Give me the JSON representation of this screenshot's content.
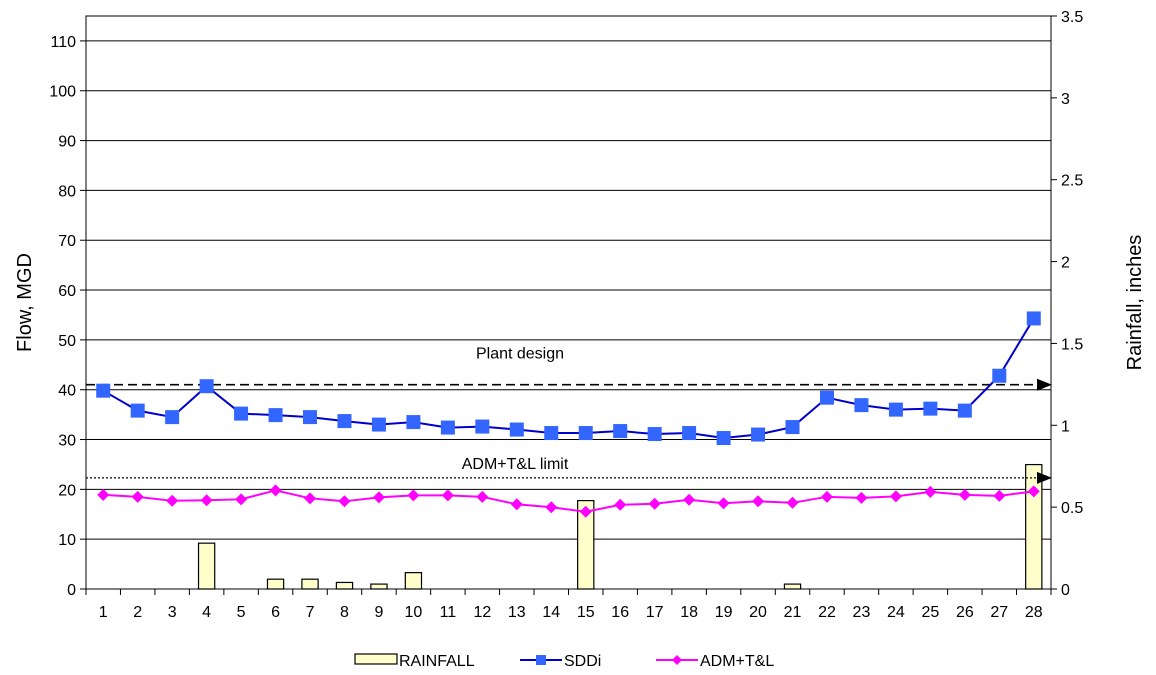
{
  "chart_data": {
    "type": "bar",
    "categories": [
      "1",
      "2",
      "3",
      "4",
      "5",
      "6",
      "7",
      "8",
      "9",
      "10",
      "11",
      "12",
      "13",
      "14",
      "15",
      "16",
      "17",
      "18",
      "19",
      "20",
      "21",
      "22",
      "23",
      "24",
      "25",
      "26",
      "27",
      "28"
    ],
    "ylabel": "Flow, MGD",
    "y2label": "Rainfall, inches",
    "ylim": [
      0,
      115
    ],
    "y2lim": [
      0,
      3.5
    ],
    "yticks": [
      0,
      10,
      20,
      30,
      40,
      50,
      60,
      70,
      80,
      90,
      100,
      110
    ],
    "y2ticks": [
      "0",
      "0.5",
      "1",
      "1.5",
      "2",
      "2.5",
      "3",
      "3.5"
    ],
    "y2tick_values": [
      0,
      0.5,
      1,
      1.5,
      2,
      2.5,
      3,
      3.5
    ],
    "grid": true,
    "legend_position": "bottom",
    "series": [
      {
        "name": "RAINFALL",
        "type": "bar",
        "axis": "right",
        "color": "#FFFFCC",
        "values": [
          0,
          0,
          0,
          0.28,
          0,
          0.06,
          0.06,
          0.04,
          0.03,
          0.1,
          0,
          0,
          0,
          0,
          0.54,
          0,
          0,
          0,
          0,
          0,
          0.03,
          0,
          0,
          0,
          0,
          0,
          0,
          0.76
        ]
      },
      {
        "name": "SDDi",
        "type": "line",
        "axis": "left",
        "color": "#3366FF",
        "marker": "square",
        "values": [
          39.8,
          35.8,
          34.5,
          40.7,
          35.2,
          34.9,
          34.5,
          33.7,
          33.0,
          33.5,
          32.4,
          32.6,
          32.0,
          31.3,
          31.3,
          31.7,
          31.1,
          31.3,
          30.3,
          31.0,
          32.5,
          38.4,
          36.9,
          36.0,
          36.2,
          35.8,
          42.8,
          54.3
        ]
      },
      {
        "name": "ADM+T&L",
        "type": "line",
        "axis": "left",
        "color": "#FF00FF",
        "marker": "diamond",
        "values": [
          18.9,
          18.5,
          17.7,
          17.8,
          18.0,
          19.8,
          18.2,
          17.6,
          18.4,
          18.8,
          18.8,
          18.5,
          17.0,
          16.4,
          15.5,
          16.9,
          17.1,
          17.9,
          17.2,
          17.6,
          17.3,
          18.5,
          18.3,
          18.6,
          19.5,
          18.9,
          18.7,
          19.6
        ]
      }
    ],
    "reference_lines": [
      {
        "label": "Plant design",
        "value": 41,
        "style": "dashed"
      },
      {
        "label": "ADM+T&L limit",
        "value": 22.3,
        "style": "dotted"
      }
    ]
  }
}
